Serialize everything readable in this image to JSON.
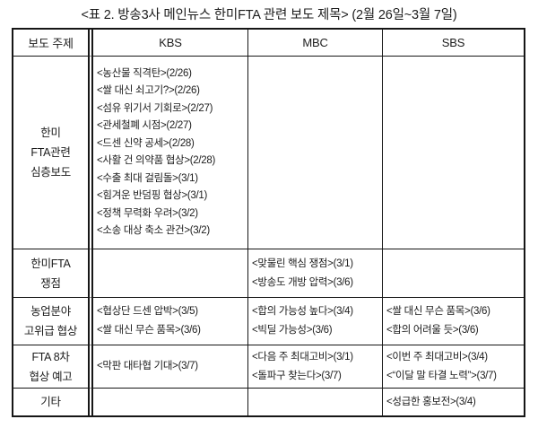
{
  "title": "<표 2. 방송3사 메인뉴스 한미FTA 관련 보도 제목> (2월 26일~3월 7일)",
  "table": {
    "columns": [
      "보도 주제",
      "KBS",
      "MBC",
      "SBS"
    ],
    "rows": [
      {
        "topic_lines": [
          "한미",
          "FTA관련",
          "심층보도"
        ],
        "kbs": [
          "<농산물 직격탄>(2/26)",
          "<쌀 대신 쇠고기?>(2/26)",
          "<섬유 위기서 기회로>(2/27)",
          "<관세철폐 시점>(2/27)",
          "<드센 신약 공세>(2/28)",
          "<사활 건 의약품 협상>(2/28)",
          "<수출 최대 걸림돌>(3/1)",
          "<힘겨운 반덤핑 협상>(3/1)",
          "<정책 무력화 우려>(3/2)",
          "<소송 대상 축소 관건>(3/2)"
        ],
        "mbc": [],
        "sbs": []
      },
      {
        "topic_lines": [
          "한미FTA",
          "쟁점"
        ],
        "kbs": [],
        "mbc": [
          "<맞물린 핵심 쟁점>(3/1)",
          "<방송도 개방 압력>(3/6)"
        ],
        "sbs": []
      },
      {
        "topic_lines": [
          "농업분야",
          "고위급 협상"
        ],
        "kbs": [
          "<협상단 드센 압박>(3/5)",
          "<쌀 대신 무슨 품목>(3/6)"
        ],
        "mbc": [
          "<합의 가능성 높다>(3/4)",
          "<빅딜 가능성>(3/6)"
        ],
        "sbs": [
          "<쌀 대신 무슨 품목>(3/6)",
          "<합의 어려울 듯>(3/6)"
        ]
      },
      {
        "topic_lines": [
          "FTA 8차",
          "협상 예고"
        ],
        "kbs": [
          "<막판 대타협 기대>(3/7)"
        ],
        "mbc": [
          "<다음 주 최대고비>(3/1)",
          "<돌파구 찾는다>(3/7)"
        ],
        "sbs": [
          "<이번 주 최대고비>(3/4)",
          "<“이달 말 타결 노력”>(3/7)"
        ]
      },
      {
        "topic_lines": [
          "기타"
        ],
        "kbs": [],
        "mbc": [],
        "sbs": [
          "<성급한 홍보전>(3/4)"
        ]
      }
    ]
  }
}
